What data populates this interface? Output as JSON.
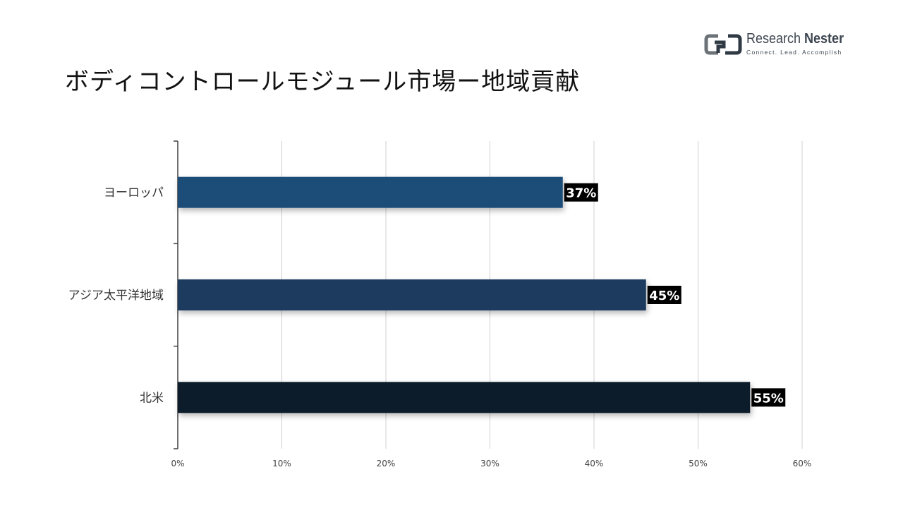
{
  "header": {
    "title": "ボディコントロールモジュール市場ー地域貢献"
  },
  "logo": {
    "name_part1": "Research ",
    "name_part2": "Nester",
    "tagline": "Connect. Lead. Accomplish",
    "icon": "research-nester-logo-icon"
  },
  "chart_data": {
    "type": "bar",
    "orientation": "horizontal",
    "title": "ボディコントロールモジュール市場ー地域貢献",
    "categories": [
      "ヨーロッパ",
      "アジア太平洋地域",
      "北米"
    ],
    "values": [
      37,
      45,
      55
    ],
    "value_labels": [
      "37%",
      "45%",
      "55%"
    ],
    "xlim": [
      0,
      60
    ],
    "x_ticks": [
      0,
      10,
      20,
      30,
      40,
      50,
      60
    ],
    "x_tick_labels": [
      "0%",
      "10%",
      "20%",
      "30%",
      "40%",
      "50%",
      "60%"
    ],
    "xlabel": "",
    "ylabel": "",
    "grid": "vertical",
    "legend": "none",
    "colors": [
      "#1f4e79",
      "#1a3a5f",
      "#0e1c2b"
    ],
    "label_background": "#000000",
    "label_color": "#ffffff"
  }
}
